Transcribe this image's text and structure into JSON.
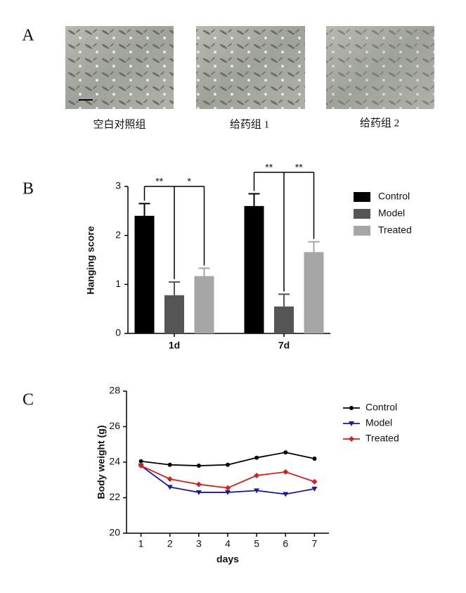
{
  "panels": {
    "A": {
      "label": "A",
      "captions": [
        "空白对照组",
        "给药组 1",
        "给药组 2"
      ]
    },
    "B": {
      "label": "B"
    },
    "C": {
      "label": "C"
    }
  },
  "chart_data": [
    {
      "type": "bar",
      "y_label": "Hanging score",
      "categories": [
        "1d",
        "7d"
      ],
      "series": [
        {
          "name": "Control",
          "color": "#000000",
          "values": [
            2.4,
            2.6
          ],
          "errors": [
            0.25,
            0.25
          ]
        },
        {
          "name": "Model",
          "color": "#555555",
          "values": [
            0.78,
            0.55
          ],
          "errors": [
            0.27,
            0.25
          ]
        },
        {
          "name": "Treated",
          "color": "#a6a6a6",
          "values": [
            1.17,
            1.66
          ],
          "errors": [
            0.16,
            0.21
          ]
        }
      ],
      "ylim": [
        0,
        3
      ],
      "yticks": [
        0,
        1,
        2,
        3
      ],
      "significance": [
        "**",
        "*",
        "**",
        "**"
      ]
    },
    {
      "type": "line",
      "x_label": "days",
      "y_label": "Body weight (g)",
      "x": [
        1,
        2,
        3,
        4,
        5,
        6,
        7
      ],
      "series": [
        {
          "name": "Control",
          "color": "#000000",
          "marker": "circle",
          "values": [
            24.05,
            23.85,
            23.8,
            23.85,
            24.25,
            24.55,
            24.2
          ]
        },
        {
          "name": "Model",
          "color": "#1a1a9c",
          "marker": "triangle-down",
          "values": [
            23.8,
            22.6,
            22.3,
            22.3,
            22.4,
            22.2,
            22.5
          ]
        },
        {
          "name": "Treated",
          "color": "#d42020",
          "marker": "diamond",
          "values": [
            23.8,
            23.05,
            22.75,
            22.55,
            23.25,
            23.45,
            22.9
          ]
        }
      ],
      "xlim": [
        0.5,
        7.5
      ],
      "xticks": [
        1,
        2,
        3,
        4,
        5,
        6,
        7
      ],
      "ylim": [
        20,
        28
      ],
      "yticks": [
        20,
        22,
        24,
        26,
        28
      ]
    }
  ]
}
